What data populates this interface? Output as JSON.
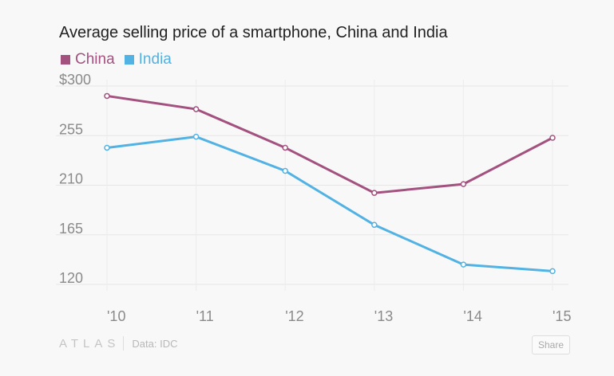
{
  "chart_data": {
    "type": "line",
    "title": "Average selling price of a smartphone, China and India",
    "categories": [
      "'10",
      "'11",
      "'12",
      "'13",
      "'14",
      "'15"
    ],
    "series": [
      {
        "name": "China",
        "color": "#a3527f",
        "values": [
          291,
          279,
          244,
          203,
          211,
          253
        ]
      },
      {
        "name": "India",
        "color": "#51b2e3",
        "values": [
          244,
          254,
          223,
          174,
          138,
          132
        ]
      }
    ],
    "ylim": [
      120,
      300
    ],
    "yticks": [
      300,
      255,
      210,
      165,
      120
    ],
    "ytick_labels": [
      "$300",
      "255",
      "210",
      "165",
      "120"
    ],
    "grid": true,
    "legend_position": "top-left"
  },
  "footer": {
    "logo": "ATLAS",
    "source": "Data: IDC",
    "share": "Share"
  }
}
